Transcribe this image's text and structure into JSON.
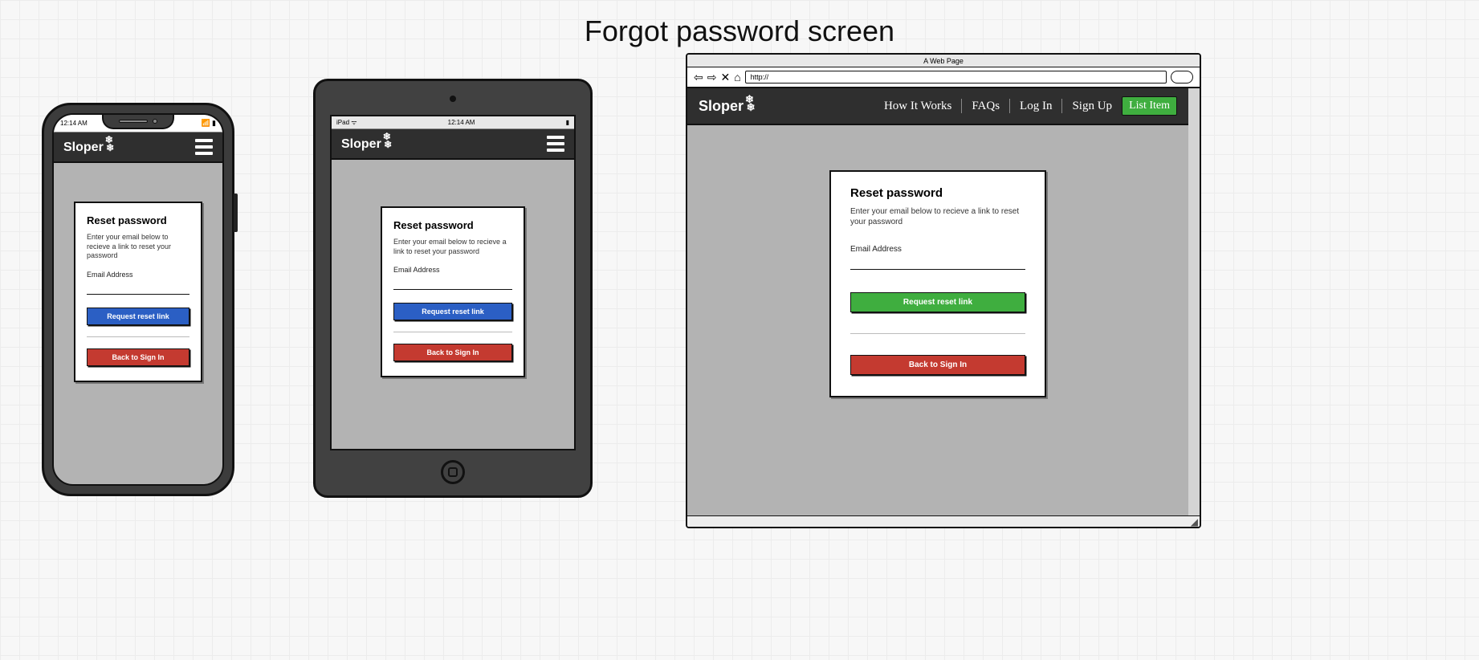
{
  "page_title": "Forgot password screen",
  "brand": {
    "name": "Sloper",
    "snowflake_glyphs": "❄ ❄"
  },
  "colors": {
    "header_bg": "#2f2f2f",
    "screen_bg": "#b3b3b3",
    "device_shell": "#414141",
    "btn_blue": "#2b5fc4",
    "btn_red": "#c43a30",
    "btn_green_primary": "#3fae3f",
    "btn_green_nav": "#3fae3f",
    "border": "#111111",
    "card_bg": "#ffffff"
  },
  "phone": {
    "status_time": "12:14 AM",
    "signal_glyph": "📶",
    "battery_glyph": "▮"
  },
  "tablet": {
    "status_left": "iPad ᯤ",
    "status_center": "12:14 AM",
    "status_right": "▮"
  },
  "desktop": {
    "titlebar": "A Web Page",
    "url_value": "http://",
    "nav": {
      "how_it_works": "How It Works",
      "faqs": "FAQs",
      "log_in": "Log In",
      "sign_up": "Sign Up",
      "list_item": "List Item"
    }
  },
  "card": {
    "heading": "Reset password",
    "subtext": "Enter your email below to recieve a link to reset your password",
    "email_label": "Email Address",
    "request_btn": "Request reset link",
    "back_btn": "Back to Sign In"
  },
  "mobile_buttons": {
    "request_color": "#2b5fc4",
    "back_color": "#c43a30"
  },
  "desktop_buttons": {
    "request_color": "#3fae3f",
    "back_color": "#c43a30"
  }
}
